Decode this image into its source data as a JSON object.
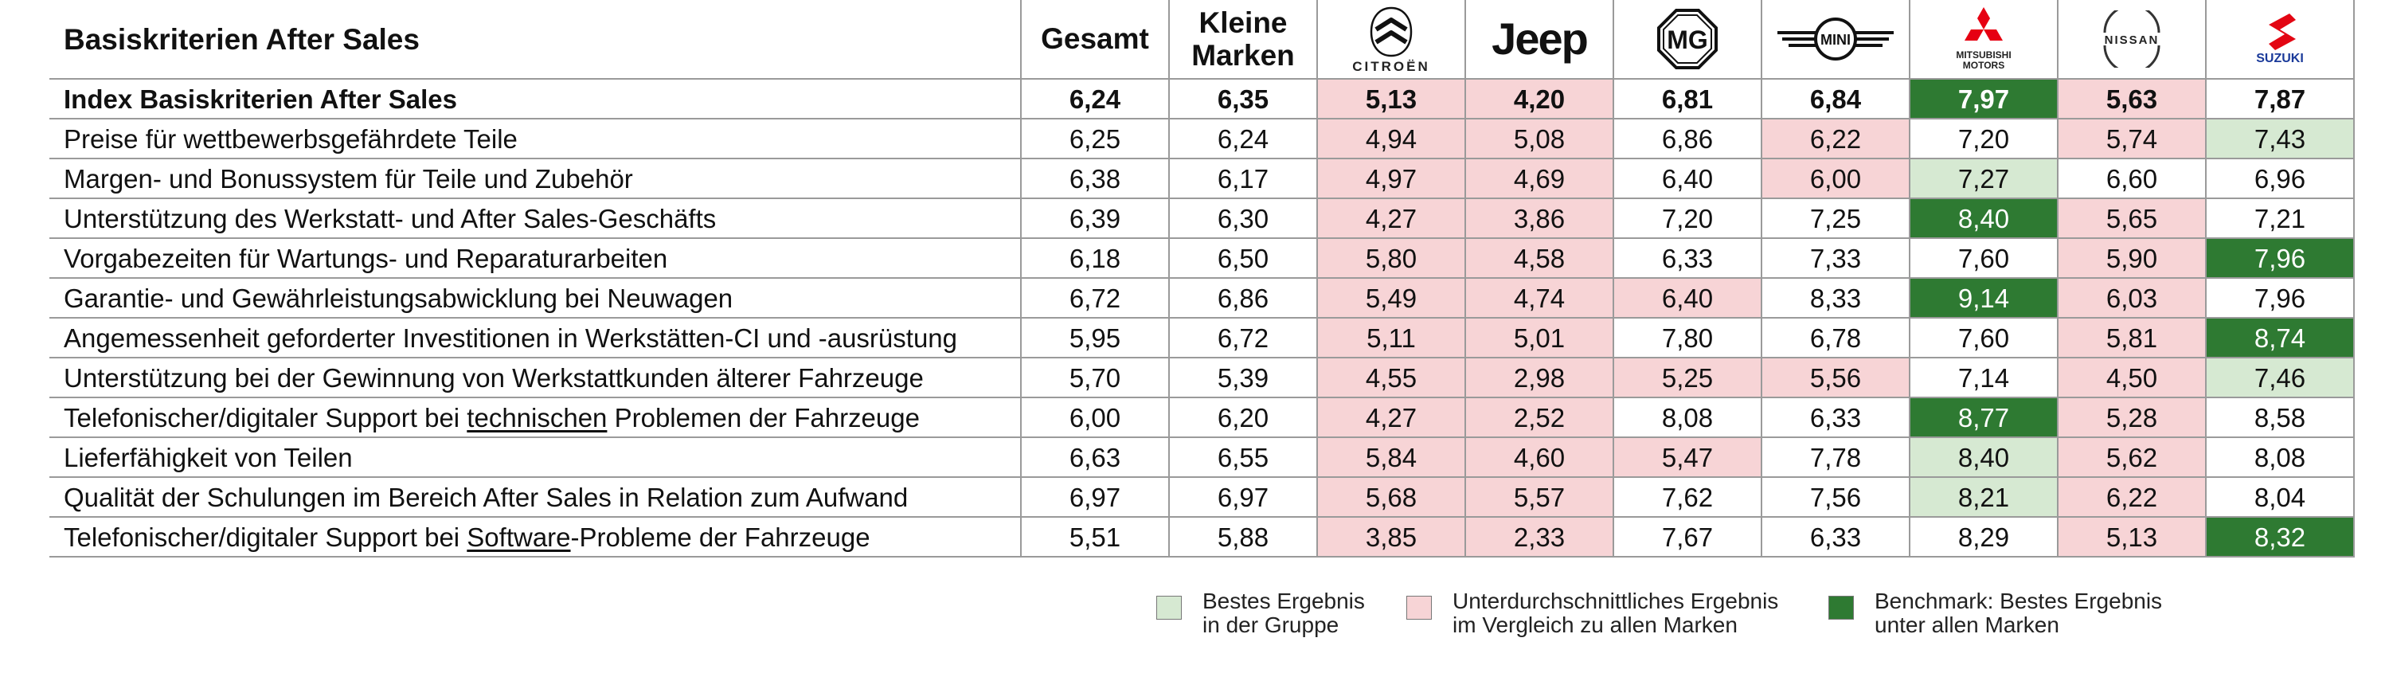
{
  "chart_data": {
    "type": "table",
    "title": "Basiskriterien After Sales",
    "columns": [
      "Gesamt",
      "Kleine Marken",
      "Citroën",
      "Jeep",
      "MG",
      "Mini",
      "Mitsubishi Motors",
      "Nissan",
      "Suzuki"
    ],
    "column_labels": {
      "gesamt": "Gesamt",
      "kleine_marken": "Kleine\nMarken",
      "citroen": "CITROËN",
      "jeep": "Jeep",
      "mg": "MG",
      "mini": "MINI",
      "mitsubishi": "MITSUBISHI\nMOTORS",
      "nissan": "NISSAN",
      "suzuki": "SUZUKI"
    },
    "rows": [
      {
        "label": "Index Basiskriterien After Sales",
        "bold": true,
        "values": [
          "6,24",
          "6,35",
          "5,13",
          "4,20",
          "6,81",
          "6,84",
          "7,97",
          "5,63",
          "7,87"
        ],
        "styles": [
          "",
          "",
          "below",
          "below",
          "",
          "",
          "bench",
          "below",
          ""
        ]
      },
      {
        "label": "Preise für wettbewerbsgefährdete Teile",
        "values": [
          "6,25",
          "6,24",
          "4,94",
          "5,08",
          "6,86",
          "6,22",
          "7,20",
          "5,74",
          "7,43"
        ],
        "styles": [
          "",
          "",
          "below",
          "below",
          "",
          "below",
          "",
          "below",
          "best"
        ]
      },
      {
        "label": "Margen- und Bonussystem für Teile und Zubehör",
        "values": [
          "6,38",
          "6,17",
          "4,97",
          "4,69",
          "6,40",
          "6,00",
          "7,27",
          "6,60",
          "6,96"
        ],
        "styles": [
          "",
          "",
          "below",
          "below",
          "",
          "below",
          "best",
          "",
          ""
        ]
      },
      {
        "label": "Unterstützung des Werkstatt- und After Sales-Geschäfts",
        "values": [
          "6,39",
          "6,30",
          "4,27",
          "3,86",
          "7,20",
          "7,25",
          "8,40",
          "5,65",
          "7,21"
        ],
        "styles": [
          "",
          "",
          "below",
          "below",
          "",
          "",
          "bench",
          "below",
          ""
        ]
      },
      {
        "label": "Vorgabezeiten für Wartungs- und Reparaturarbeiten",
        "values": [
          "6,18",
          "6,50",
          "5,80",
          "4,58",
          "6,33",
          "7,33",
          "7,60",
          "5,90",
          "7,96"
        ],
        "styles": [
          "",
          "",
          "below",
          "below",
          "",
          "",
          "",
          "below",
          "bench"
        ]
      },
      {
        "label": "Garantie- und Gewährleistungsabwicklung bei Neuwagen",
        "values": [
          "6,72",
          "6,86",
          "5,49",
          "4,74",
          "6,40",
          "8,33",
          "9,14",
          "6,03",
          "7,96"
        ],
        "styles": [
          "",
          "",
          "below",
          "below",
          "below",
          "",
          "bench",
          "below",
          ""
        ]
      },
      {
        "label": "Angemessenheit geforderter Investitionen in Werkstätten-CI und -ausrüstung",
        "values": [
          "5,95",
          "6,72",
          "5,11",
          "5,01",
          "7,80",
          "6,78",
          "7,60",
          "5,81",
          "8,74"
        ],
        "styles": [
          "",
          "",
          "below",
          "below",
          "",
          "",
          "",
          "below",
          "bench"
        ]
      },
      {
        "label": "Unterstützung bei der Gewinnung von Werkstattkunden älterer Fahrzeuge",
        "values": [
          "5,70",
          "5,39",
          "4,55",
          "2,98",
          "5,25",
          "5,56",
          "7,14",
          "4,50",
          "7,46"
        ],
        "styles": [
          "",
          "",
          "below",
          "below",
          "below",
          "below",
          "",
          "below",
          "best"
        ]
      },
      {
        "label_parts": [
          "Telefonischer/digitaler Support bei ",
          "technischen",
          " Problemen der Fahrzeuge"
        ],
        "values": [
          "6,00",
          "6,20",
          "4,27",
          "2,52",
          "8,08",
          "6,33",
          "8,77",
          "5,28",
          "8,58"
        ],
        "styles": [
          "",
          "",
          "below",
          "below",
          "",
          "",
          "bench",
          "below",
          ""
        ]
      },
      {
        "label": "Lieferfähigkeit von Teilen",
        "values": [
          "6,63",
          "6,55",
          "5,84",
          "4,60",
          "5,47",
          "7,78",
          "8,40",
          "5,62",
          "8,08"
        ],
        "styles": [
          "",
          "",
          "below",
          "below",
          "below",
          "",
          "best",
          "below",
          ""
        ]
      },
      {
        "label": "Qualität der Schulungen im Bereich After Sales in Relation zum Aufwand",
        "values": [
          "6,97",
          "6,97",
          "5,68",
          "5,57",
          "7,62",
          "7,56",
          "8,21",
          "6,22",
          "8,04"
        ],
        "styles": [
          "",
          "",
          "below",
          "below",
          "",
          "",
          "best",
          "below",
          ""
        ]
      },
      {
        "label_parts": [
          "Telefonischer/digitaler Support bei ",
          "Software",
          "-Probleme der Fahrzeuge"
        ],
        "values": [
          "5,51",
          "5,88",
          "3,85",
          "2,33",
          "7,67",
          "6,33",
          "8,29",
          "5,13",
          "8,32"
        ],
        "styles": [
          "",
          "",
          "below",
          "below",
          "",
          "",
          "",
          "below",
          "bench"
        ]
      }
    ],
    "legend": [
      {
        "key": "best",
        "text": "Bestes Ergebnis\nin der Gruppe",
        "color": "#d6e9d2"
      },
      {
        "key": "below",
        "text": "Unterdurchschnittliches Ergebnis\nim Vergleich zu allen Marken",
        "color": "#f7d4d6"
      },
      {
        "key": "bench",
        "text": "Benchmark: Bestes Ergebnis\nunter allen Marken",
        "color": "#2e7a32"
      }
    ],
    "legend_placement": "bottom-right",
    "grid": true
  }
}
